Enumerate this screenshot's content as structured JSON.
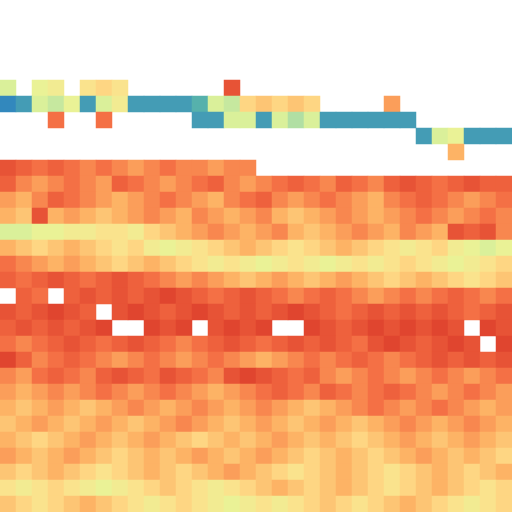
{
  "chart_data": {
    "type": "heatmap",
    "tick_labels": false,
    "color_range": [
      0,
      1
    ],
    "colors": [
      "#e0452f",
      "#f46d43",
      "#fdae61",
      "#fee08b",
      "#e6f598",
      "#abdda4",
      "#66c2a5",
      "#3288bd"
    ],
    "cells": [
      [
        null,
        null,
        null,
        null,
        null,
        null,
        null,
        null,
        null,
        null,
        null,
        null,
        null,
        null,
        null,
        null,
        null,
        null,
        null,
        null,
        null,
        null,
        null,
        null,
        null,
        null,
        null,
        null,
        null,
        null,
        null,
        null
      ],
      [
        null,
        null,
        null,
        null,
        null,
        null,
        null,
        null,
        null,
        null,
        null,
        null,
        null,
        null,
        null,
        null,
        null,
        null,
        null,
        null,
        null,
        null,
        null,
        null,
        null,
        null,
        null,
        null,
        null,
        null,
        null,
        null
      ],
      [
        null,
        null,
        null,
        null,
        null,
        null,
        null,
        null,
        null,
        null,
        null,
        null,
        null,
        null,
        null,
        null,
        null,
        null,
        null,
        null,
        null,
        null,
        null,
        null,
        null,
        null,
        null,
        null,
        null,
        null,
        null,
        null
      ],
      [
        null,
        null,
        null,
        null,
        null,
        null,
        null,
        null,
        null,
        null,
        null,
        null,
        null,
        null,
        null,
        null,
        null,
        null,
        null,
        null,
        null,
        null,
        null,
        null,
        null,
        null,
        null,
        null,
        null,
        null,
        null,
        null
      ],
      [
        null,
        null,
        null,
        null,
        null,
        null,
        null,
        null,
        null,
        null,
        null,
        null,
        null,
        null,
        null,
        null,
        null,
        null,
        null,
        null,
        null,
        null,
        null,
        null,
        null,
        null,
        null,
        null,
        null,
        null,
        null,
        null
      ],
      [
        0.6,
        null,
        0.55,
        0.5,
        null,
        0.45,
        0.4,
        0.45,
        null,
        null,
        null,
        null,
        null,
        null,
        0.05,
        null,
        null,
        null,
        null,
        null,
        null,
        null,
        null,
        null,
        null,
        null,
        null,
        null,
        null,
        null,
        null,
        null
      ],
      [
        1.0,
        0.95,
        0.6,
        0.65,
        0.55,
        0.95,
        0.6,
        0.5,
        0.95,
        0.95,
        0.95,
        0.95,
        0.9,
        0.6,
        0.65,
        0.4,
        0.35,
        0.4,
        0.35,
        0.4,
        null,
        null,
        null,
        null,
        0.25,
        null,
        null,
        null,
        null,
        null,
        null,
        null
      ],
      [
        null,
        null,
        null,
        0.15,
        null,
        null,
        0.15,
        null,
        null,
        null,
        null,
        null,
        0.95,
        0.95,
        0.6,
        0.6,
        0.95,
        0.6,
        0.7,
        0.6,
        0.95,
        0.95,
        0.95,
        0.95,
        0.95,
        0.95,
        null,
        null,
        null,
        null,
        null,
        null
      ],
      [
        null,
        null,
        null,
        null,
        null,
        null,
        null,
        null,
        null,
        null,
        null,
        null,
        null,
        null,
        null,
        null,
        null,
        null,
        null,
        null,
        null,
        null,
        null,
        null,
        null,
        null,
        0.95,
        0.6,
        0.55,
        0.95,
        0.95,
        0.95
      ],
      [
        null,
        null,
        null,
        null,
        null,
        null,
        null,
        null,
        null,
        null,
        null,
        null,
        null,
        null,
        null,
        null,
        null,
        null,
        null,
        null,
        null,
        null,
        null,
        null,
        null,
        null,
        null,
        null,
        0.3,
        null,
        null,
        null
      ],
      [
        0.05,
        0.1,
        0.15,
        0.1,
        0.15,
        0.2,
        0.15,
        0.2,
        0.25,
        0.2,
        0.15,
        0.2,
        0.2,
        0.25,
        0.2,
        0.2,
        null,
        null,
        null,
        null,
        null,
        null,
        null,
        null,
        null,
        null,
        null,
        null,
        null,
        null,
        null,
        null
      ],
      [
        0.1,
        0.2,
        0.25,
        0.2,
        0.15,
        0.2,
        0.25,
        0.1,
        0.15,
        0.2,
        0.25,
        0.2,
        0.15,
        0.1,
        0.2,
        0.25,
        0.2,
        0.15,
        0.1,
        0.15,
        0.2,
        0.1,
        0.15,
        0.2,
        0.1,
        0.05,
        0.1,
        0.15,
        0.1,
        0.05,
        0.1,
        0.1
      ],
      [
        0.25,
        0.3,
        0.2,
        0.1,
        0.15,
        0.2,
        0.25,
        0.3,
        0.25,
        0.2,
        0.15,
        0.2,
        0.25,
        0.3,
        0.2,
        0.15,
        0.1,
        0.2,
        0.25,
        0.2,
        0.15,
        0.2,
        0.25,
        0.3,
        0.2,
        0.15,
        0.1,
        0.15,
        0.2,
        0.25,
        0.2,
        0.15
      ],
      [
        0.3,
        0.35,
        0.05,
        0.3,
        0.25,
        0.3,
        0.35,
        0.3,
        0.25,
        0.2,
        0.25,
        0.3,
        0.2,
        0.25,
        0.3,
        0.25,
        0.2,
        0.3,
        0.35,
        0.3,
        0.25,
        0.2,
        0.25,
        0.3,
        0.25,
        0.2,
        0.15,
        0.2,
        0.25,
        0.2,
        0.15,
        0.2
      ],
      [
        0.6,
        0.6,
        0.55,
        0.55,
        0.5,
        0.5,
        0.45,
        0.45,
        0.5,
        0.4,
        0.35,
        0.3,
        0.25,
        0.2,
        0.25,
        0.3,
        0.25,
        0.2,
        0.3,
        0.35,
        0.3,
        0.25,
        0.2,
        0.25,
        0.3,
        0.2,
        0.25,
        0.3,
        0.05,
        0.1,
        0.05,
        0.2
      ],
      [
        0.3,
        0.35,
        0.4,
        0.35,
        0.3,
        0.35,
        0.4,
        0.45,
        0.4,
        0.5,
        0.55,
        0.5,
        0.45,
        0.4,
        0.35,
        0.3,
        0.35,
        0.4,
        0.45,
        0.4,
        0.35,
        0.3,
        0.35,
        0.4,
        0.45,
        0.5,
        0.45,
        0.4,
        0.5,
        0.55,
        0.6,
        0.55
      ],
      [
        0.15,
        0.2,
        0.25,
        0.3,
        0.25,
        0.3,
        0.35,
        0.4,
        0.35,
        0.3,
        0.35,
        0.4,
        0.45,
        0.5,
        0.45,
        0.5,
        0.55,
        0.5,
        0.45,
        0.5,
        0.55,
        0.5,
        0.45,
        0.5,
        0.45,
        0.4,
        0.45,
        0.5,
        0.55,
        0.5,
        0.45,
        0.4
      ],
      [
        0.1,
        0.15,
        0.1,
        0.05,
        0.1,
        0.15,
        0.1,
        0.05,
        0.1,
        0.15,
        0.2,
        0.25,
        0.2,
        0.25,
        0.3,
        0.35,
        0.3,
        0.25,
        0.3,
        0.35,
        0.3,
        0.25,
        0.3,
        0.35,
        0.4,
        0.35,
        0.3,
        0.35,
        0.4,
        0.45,
        0.4,
        0.35
      ],
      [
        null,
        0.1,
        0.15,
        null,
        0.1,
        0.05,
        0.1,
        0.05,
        0.1,
        0.05,
        0.0,
        0.05,
        0.1,
        0.15,
        0.1,
        0.05,
        0.1,
        0.15,
        0.2,
        0.15,
        0.1,
        0.15,
        0.2,
        0.25,
        0.2,
        0.15,
        0.2,
        0.15,
        0.1,
        0.15,
        0.2,
        0.15
      ],
      [
        0.05,
        0.1,
        0.05,
        0.0,
        0.05,
        0.1,
        null,
        0.05,
        0.0,
        0.05,
        0.1,
        0.05,
        0.0,
        0.05,
        0.1,
        0.05,
        0.1,
        0.05,
        0.0,
        0.05,
        0.1,
        0.15,
        0.1,
        0.05,
        0.1,
        0.05,
        0.1,
        0.05,
        0.1,
        0.15,
        0.1,
        0.05
      ],
      [
        0.1,
        0.05,
        0.1,
        0.05,
        0.1,
        0.05,
        0.0,
        null,
        null,
        0.0,
        0.05,
        0.0,
        null,
        0.05,
        0.0,
        0.05,
        0.0,
        null,
        null,
        0.0,
        0.05,
        0.1,
        0.05,
        0.0,
        0.05,
        0.0,
        0.05,
        0.0,
        0.05,
        null,
        0.0,
        0.05
      ],
      [
        0.15,
        0.2,
        0.15,
        0.1,
        0.05,
        0.1,
        0.15,
        0.1,
        0.05,
        0.1,
        0.15,
        0.2,
        0.15,
        0.1,
        0.05,
        0.1,
        0.15,
        0.1,
        0.05,
        0.1,
        0.05,
        0.1,
        0.15,
        0.05,
        0.0,
        0.05,
        0.1,
        0.05,
        0.0,
        0.05,
        null,
        0.0
      ],
      [
        0.0,
        0.1,
        0.2,
        0.15,
        0.1,
        0.15,
        0.2,
        0.25,
        0.2,
        0.15,
        0.2,
        0.25,
        0.2,
        0.15,
        0.2,
        0.25,
        0.3,
        0.25,
        0.2,
        0.15,
        0.2,
        0.15,
        0.1,
        0.15,
        0.2,
        0.15,
        0.1,
        0.05,
        0.1,
        0.05,
        0.1,
        0.05
      ],
      [
        0.2,
        0.25,
        0.15,
        0.1,
        0.15,
        0.2,
        0.1,
        0.05,
        0.1,
        0.15,
        0.05,
        0.1,
        0.15,
        0.2,
        0.05,
        0.0,
        0.05,
        0.1,
        0.15,
        0.1,
        0.2,
        0.25,
        0.2,
        0.15,
        0.2,
        0.25,
        0.2,
        0.15,
        0.2,
        0.25,
        0.2,
        0.15
      ],
      [
        0.25,
        0.3,
        0.25,
        0.2,
        0.25,
        0.2,
        0.15,
        0.2,
        0.25,
        0.2,
        0.15,
        0.2,
        0.25,
        0.3,
        0.25,
        0.2,
        0.15,
        0.1,
        0.15,
        0.2,
        0.1,
        0.15,
        0.2,
        0.15,
        0.1,
        0.15,
        0.2,
        0.25,
        0.2,
        0.15,
        0.2,
        0.25
      ],
      [
        0.3,
        0.35,
        0.3,
        0.25,
        0.3,
        0.35,
        0.3,
        0.25,
        0.2,
        0.25,
        0.3,
        0.25,
        0.2,
        0.25,
        0.3,
        0.25,
        0.2,
        0.25,
        0.3,
        0.35,
        0.3,
        0.25,
        0.2,
        0.15,
        0.2,
        0.25,
        0.2,
        0.15,
        0.2,
        0.25,
        0.3,
        0.25
      ],
      [
        0.35,
        0.3,
        0.25,
        0.3,
        0.35,
        0.3,
        0.25,
        0.3,
        0.35,
        0.3,
        0.25,
        0.2,
        0.25,
        0.3,
        0.35,
        0.3,
        0.25,
        0.3,
        0.35,
        0.3,
        0.25,
        0.3,
        0.35,
        0.3,
        0.25,
        0.2,
        0.25,
        0.3,
        0.25,
        0.2,
        0.25,
        0.3
      ],
      [
        0.3,
        0.35,
        0.4,
        0.35,
        0.3,
        0.25,
        0.3,
        0.35,
        0.3,
        0.25,
        0.3,
        0.35,
        0.4,
        0.35,
        0.3,
        0.35,
        0.3,
        0.25,
        0.3,
        0.35,
        0.3,
        0.35,
        0.4,
        0.35,
        0.3,
        0.25,
        0.3,
        0.35,
        0.3,
        0.25,
        0.3,
        0.35
      ],
      [
        0.25,
        0.3,
        0.35,
        0.3,
        0.25,
        0.3,
        0.35,
        0.4,
        0.35,
        0.3,
        0.35,
        0.3,
        0.25,
        0.3,
        0.35,
        0.3,
        0.25,
        0.3,
        0.35,
        0.4,
        0.35,
        0.3,
        0.35,
        0.4,
        0.35,
        0.3,
        0.25,
        0.3,
        0.35,
        0.3,
        0.35,
        0.4
      ],
      [
        0.35,
        0.4,
        0.35,
        0.3,
        0.35,
        0.4,
        0.45,
        0.4,
        0.35,
        0.3,
        0.35,
        0.4,
        0.35,
        0.3,
        0.25,
        0.3,
        0.35,
        0.4,
        0.45,
        0.4,
        0.35,
        0.3,
        0.35,
        0.4,
        0.45,
        0.4,
        0.35,
        0.3,
        0.35,
        0.4,
        0.35,
        0.3
      ],
      [
        0.45,
        0.5,
        0.45,
        0.4,
        0.45,
        0.5,
        0.55,
        0.5,
        0.45,
        0.4,
        0.35,
        0.4,
        0.45,
        0.5,
        0.45,
        0.4,
        0.35,
        0.3,
        0.35,
        0.4,
        0.35,
        0.3,
        0.35,
        0.4,
        0.45,
        0.4,
        0.35,
        0.3,
        0.35,
        0.4,
        0.45,
        0.4
      ],
      [
        0.35,
        0.4,
        0.45,
        0.4,
        0.35,
        0.3,
        0.35,
        0.4,
        0.45,
        0.5,
        0.45,
        0.4,
        0.45,
        0.5,
        0.55,
        0.5,
        0.45,
        0.5,
        0.45,
        0.4,
        0.35,
        0.4,
        0.45,
        0.4,
        0.35,
        0.3,
        0.35,
        0.4,
        0.45,
        0.5,
        0.45,
        0.4
      ]
    ]
  }
}
